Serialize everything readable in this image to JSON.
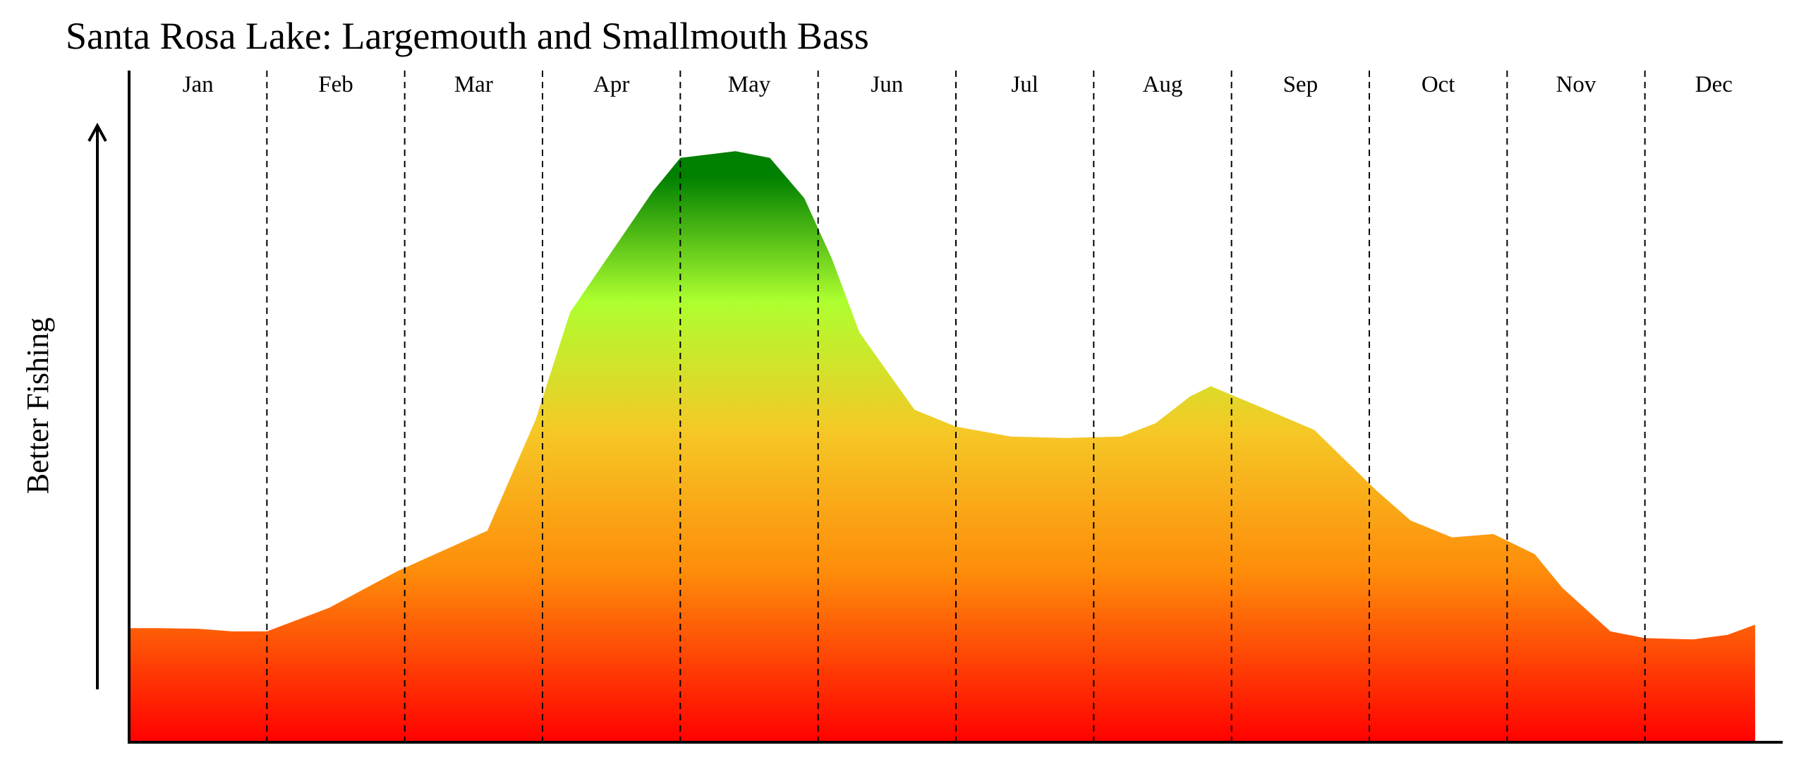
{
  "chart_data": {
    "type": "area",
    "title": "Santa Rosa Lake: Largemouth and Smallmouth Bass",
    "xlabel": "",
    "ylabel": "Better Fishing",
    "categories": [
      "Jan",
      "Feb",
      "Mar",
      "Apr",
      "May",
      "Jun",
      "Jul",
      "Aug",
      "Sep",
      "Oct",
      "Nov",
      "Dec"
    ],
    "x": [
      0,
      0.2,
      0.5,
      0.75,
      1.0,
      1.45,
      1.95,
      2.2,
      2.6,
      2.95,
      3.2,
      3.8,
      4.0,
      4.4,
      4.65,
      4.9,
      5.1,
      5.3,
      5.7,
      6.0,
      6.4,
      6.8,
      7.2,
      7.45,
      7.7,
      7.85,
      8.2,
      8.6,
      9.05,
      9.3,
      9.6,
      9.9,
      10.2,
      10.4,
      10.75,
      11.0,
      11.35,
      11.6,
      11.8
    ],
    "values": [
      17,
      17,
      16.9,
      16.5,
      16.5,
      20,
      25.5,
      27.8,
      31.5,
      48,
      64,
      82,
      87,
      88,
      87,
      81,
      72,
      61,
      49.5,
      47,
      45.5,
      45.3,
      45.5,
      47.5,
      51.5,
      53,
      50,
      46.5,
      37.5,
      33,
      30.5,
      31,
      28,
      23,
      16.5,
      15.5,
      15.3,
      16,
      17.5
    ],
    "ylim": [
      0,
      100
    ],
    "grid": "vertical dashed at month boundaries",
    "fill_gradient": {
      "low": "#ff0000",
      "stops": [
        "#ff0000",
        "#fe8c0a",
        "#f5c826",
        "#adff2f",
        "#008000"
      ]
    },
    "axis_color": "#000000"
  }
}
